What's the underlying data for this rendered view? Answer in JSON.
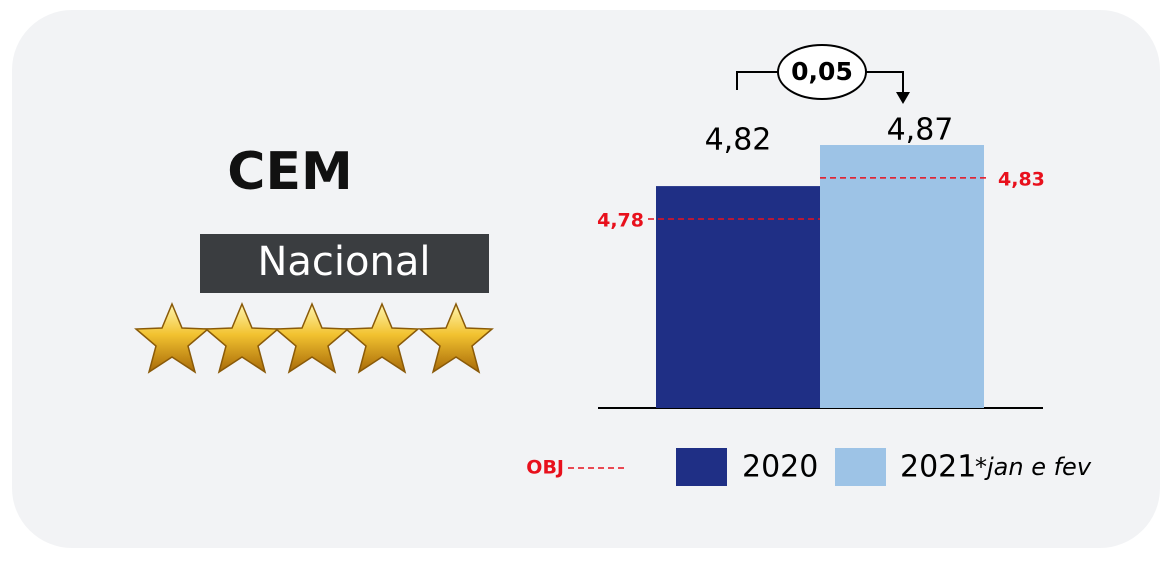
{
  "chart_data": {
    "type": "bar",
    "title": "CEM",
    "subtitle": "Nacional",
    "categories": [
      "2020",
      "2021"
    ],
    "values": [
      4.82,
      4.87
    ],
    "value_labels": [
      "4,82",
      "4,87"
    ],
    "colors": [
      "#1f2f85",
      "#9dc3e6"
    ],
    "targets": [
      4.78,
      4.83
    ],
    "target_labels": [
      "4,78",
      "4,83"
    ],
    "target_legend": "OBJ",
    "target_color": "#e8101c",
    "difference": 0.05,
    "difference_label": "0,05",
    "note": "*jan e fev",
    "ylim": [
      4.55,
      4.87
    ]
  }
}
